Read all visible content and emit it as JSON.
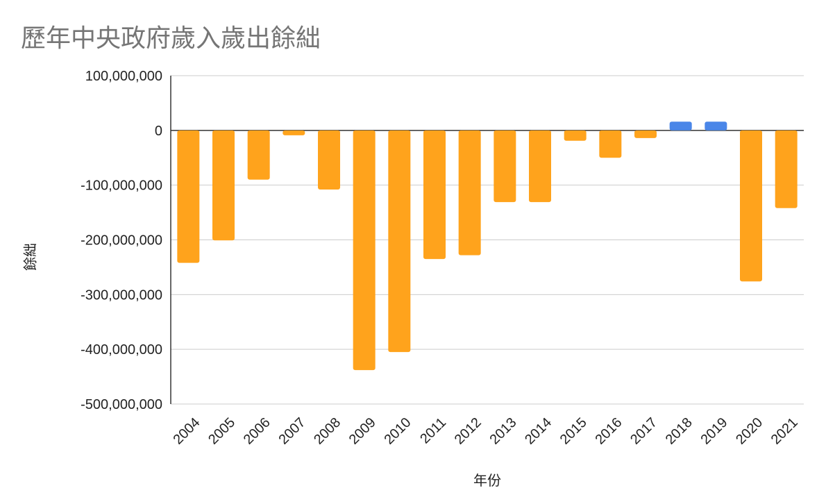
{
  "chart_data": {
    "type": "bar",
    "title": "歷年中央政府歲入歲出餘絀",
    "xlabel": "年份",
    "ylabel": "餘絀",
    "categories": [
      "2004",
      "2005",
      "2006",
      "2007",
      "2008",
      "2009",
      "2010",
      "2011",
      "2012",
      "2013",
      "2014",
      "2015",
      "2016",
      "2017",
      "2018",
      "2019",
      "2020",
      "2021"
    ],
    "values": [
      -242000000,
      -201000000,
      -90000000,
      -9000000,
      -108000000,
      -438000000,
      -405000000,
      -235000000,
      -228000000,
      -131000000,
      -131000000,
      -19000000,
      -50000000,
      -14000000,
      16000000,
      16000000,
      -276000000,
      -142000000
    ],
    "ylim": [
      -500000000,
      100000000
    ],
    "yticks": [
      100000000,
      0,
      -100000000,
      -200000000,
      -300000000,
      -400000000,
      -500000000
    ],
    "ytick_labels": [
      "100,000,000",
      "0",
      "-100,000,000",
      "-200,000,000",
      "-300,000,000",
      "-400,000,000",
      "-500,000,000"
    ],
    "colors": {
      "negative": "#FFA31C",
      "positive": "#4A86E8",
      "grid": "#CCCCCC",
      "zero_line": "#333333"
    },
    "grid": true,
    "legend": "none"
  }
}
